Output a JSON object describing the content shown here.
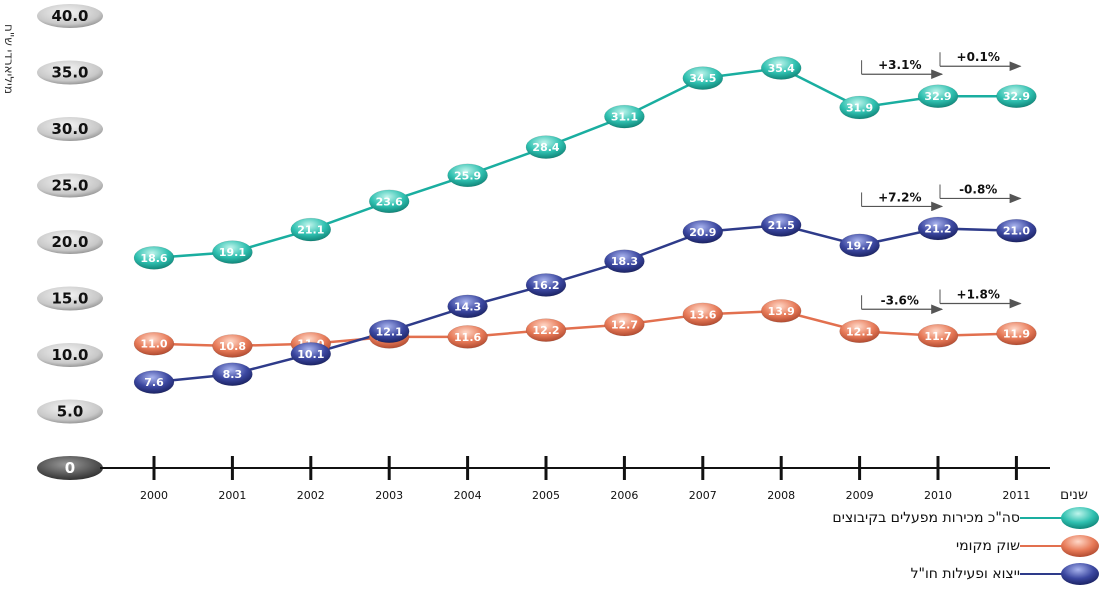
{
  "y_axis_label": "מיליארדי ש\"ח",
  "x_axis_label": "שנים",
  "chart_data": {
    "type": "line",
    "x": [
      "2000",
      "2001",
      "2002",
      "2003",
      "2004",
      "2005",
      "2006",
      "2007",
      "2008",
      "2009",
      "2010",
      "2011"
    ],
    "ylim": [
      0,
      40
    ],
    "yticks": [
      "0",
      "5.0",
      "10.0",
      "15.0",
      "20.0",
      "25.0",
      "30.0",
      "35.0",
      "40.0"
    ],
    "grid": false,
    "legend_position": "bottom-right",
    "series": [
      {
        "name": "סה\"כ מכירות מפעלים בקיבוצים",
        "color": "#1aaea0",
        "light": "#7fe0d3",
        "values": [
          18.6,
          19.1,
          21.1,
          23.6,
          25.9,
          28.4,
          31.1,
          34.5,
          35.4,
          31.9,
          32.9,
          32.9
        ],
        "labels": [
          "18.6",
          "19.1",
          "21.1",
          "23.6",
          "25.9",
          "28.4",
          "31.1",
          "34.5",
          "35.4",
          "31.9",
          "32.9",
          "32.9"
        ]
      },
      {
        "name": "שוק מקומי",
        "color": "#e2704f",
        "light": "#f5b49d",
        "values": [
          11.0,
          10.8,
          11.0,
          11.6,
          11.6,
          12.2,
          12.7,
          13.6,
          13.9,
          12.1,
          11.7,
          11.9
        ],
        "labels": [
          "11.0",
          "10.8",
          "11.0",
          "11.6",
          "11.6",
          "12.2",
          "12.7",
          "13.6",
          "13.9",
          "12.1",
          "11.7",
          "11.9"
        ]
      },
      {
        "name": "ייצוא ופעילות חו\"ל",
        "color": "#2e3b8a",
        "light": "#6f7fcf",
        "values": [
          7.6,
          8.3,
          10.1,
          12.1,
          14.3,
          16.2,
          18.3,
          20.9,
          21.5,
          19.7,
          21.2,
          21.0
        ],
        "labels": [
          "7.6",
          "8.3",
          "10.1",
          "12.1",
          "14.3",
          "16.2",
          "18.3",
          "20.9",
          "21.5",
          "19.7",
          "21.2",
          "21.0"
        ]
      }
    ],
    "annotations": [
      {
        "text": "+3.1%",
        "from": "2009",
        "to": "2010",
        "series": 0
      },
      {
        "text": "+0.1%",
        "from": "2010",
        "to": "2011",
        "series": 0
      },
      {
        "text": "+7.2%",
        "from": "2009",
        "to": "2010",
        "series": 2
      },
      {
        "text": "-0.8%",
        "from": "2010",
        "to": "2011",
        "series": 2
      },
      {
        "text": "-3.6%",
        "from": "2009",
        "to": "2010",
        "series": 1
      },
      {
        "text": "+1.8%",
        "from": "2010",
        "to": "2011",
        "series": 1
      }
    ]
  }
}
